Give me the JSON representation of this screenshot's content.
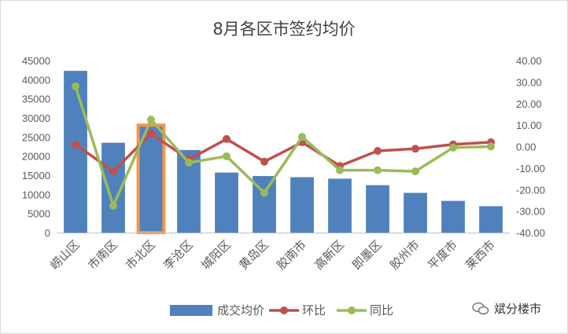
{
  "chart_data": {
    "type": "bar",
    "title": "8月各区市签约均价",
    "categories": [
      "崂山区",
      "市南区",
      "市北区",
      "李沧区",
      "城阳区",
      "黄岛区",
      "胶南市",
      "高新区",
      "即墨区",
      "胶州市",
      "平度市",
      "莱西市"
    ],
    "series": [
      {
        "name": "成交均价",
        "type": "bar",
        "axis": "left",
        "values": [
          42300,
          23500,
          27800,
          21600,
          15700,
          14800,
          14500,
          14100,
          12400,
          10400,
          8300,
          6900
        ]
      },
      {
        "name": "环比",
        "type": "line",
        "axis": "right",
        "values": [
          1.0,
          -11.5,
          6.0,
          -6.0,
          3.5,
          -7.0,
          2.0,
          -9.0,
          -2.0,
          -1.0,
          1.0,
          2.0
        ]
      },
      {
        "name": "同比",
        "type": "line",
        "axis": "right",
        "values": [
          28.0,
          -27.5,
          12.5,
          -7.5,
          -4.5,
          -21.5,
          4.5,
          -11.0,
          -11.0,
          -11.5,
          -0.5,
          0.0
        ]
      }
    ],
    "ylim_left": [
      0,
      45000
    ],
    "yticks_left": [
      "0",
      "5000",
      "10000",
      "15000",
      "20000",
      "25000",
      "30000",
      "35000",
      "40000",
      "45000"
    ],
    "ylim_right": [
      -40,
      40
    ],
    "yticks_right": [
      "-40.00",
      "-30.00",
      "-20.00",
      "-10.00",
      "0.00",
      "10.00",
      "20.00",
      "30.00",
      "40.00"
    ],
    "highlight_category": "市北区",
    "legend_position": "bottom",
    "colors": {
      "bar": "#4f81bd",
      "mom": "#c0504d",
      "yoy": "#9bbb59",
      "highlight": "#f79646",
      "axis_text": "#595959",
      "title": "#404040"
    }
  },
  "watermark": {
    "text": "斌分楼市",
    "icon": "wechat-bubble-icon"
  }
}
